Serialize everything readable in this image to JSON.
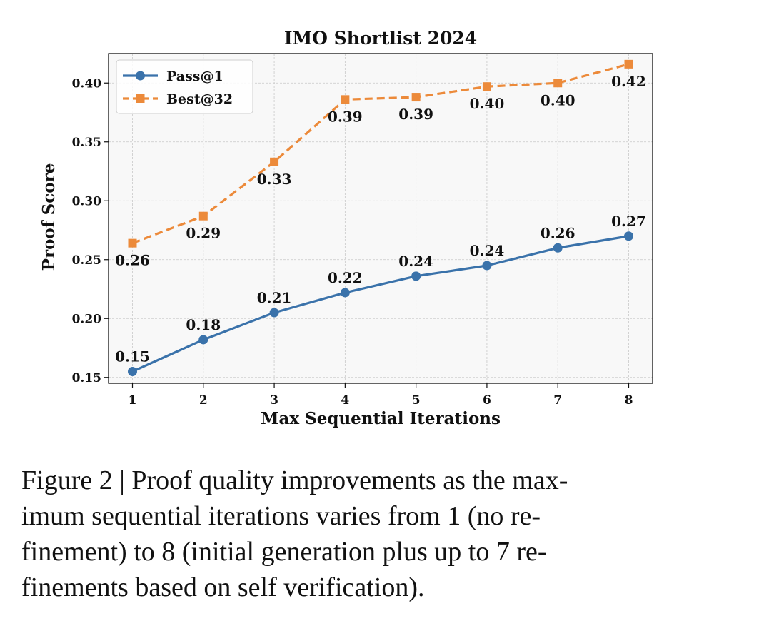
{
  "chart_data": {
    "type": "line",
    "title": "IMO Shortlist 2024",
    "xlabel": "Max Sequential Iterations",
    "ylabel": "Proof Score",
    "x": [
      1,
      2,
      3,
      4,
      5,
      6,
      7,
      8
    ],
    "xticks": [
      "1",
      "2",
      "3",
      "4",
      "5",
      "6",
      "7",
      "8"
    ],
    "ylim": [
      0.145,
      0.425
    ],
    "yticks": [
      "0.15",
      "0.20",
      "0.25",
      "0.30",
      "0.35",
      "0.40"
    ],
    "grid": true,
    "legend_position": "top-left",
    "series": [
      {
        "name": "Pass@1",
        "color": "#3a72aa",
        "marker": "circle",
        "line_style": "solid",
        "values": [
          0.155,
          0.182,
          0.205,
          0.222,
          0.236,
          0.245,
          0.26,
          0.27
        ],
        "labels": [
          "0.15",
          "0.18",
          "0.21",
          "0.22",
          "0.24",
          "0.24",
          "0.26",
          "0.27"
        ],
        "label_position": "above"
      },
      {
        "name": "Best@32",
        "color": "#ec8a3a",
        "marker": "square",
        "line_style": "dashed",
        "values": [
          0.264,
          0.287,
          0.333,
          0.386,
          0.388,
          0.397,
          0.4,
          0.416
        ],
        "labels": [
          "0.26",
          "0.29",
          "0.33",
          "0.39",
          "0.39",
          "0.40",
          "0.40",
          "0.42"
        ],
        "label_position": "below"
      }
    ]
  },
  "caption": {
    "lines": [
      "Figure 2 | Proof quality improvements as the max-",
      "imum sequential iterations varies from 1 (no re-",
      "finement) to 8 (initial generation plus up to 7 re-",
      "finements based on self verification)."
    ]
  }
}
